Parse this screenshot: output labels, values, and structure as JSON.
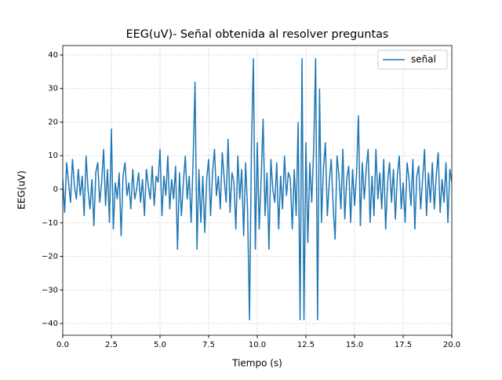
{
  "chart_data": {
    "type": "line",
    "title": "EEG(uV)- Señal obtenida al resolver preguntas",
    "x_label": "Tiempo (s)",
    "y_label": "EEG(uV)",
    "x": [
      0.0,
      0.1,
      0.2,
      0.3,
      0.4,
      0.5,
      0.6,
      0.7,
      0.8,
      0.9,
      1.0,
      1.1,
      1.2,
      1.3,
      1.4,
      1.5,
      1.6,
      1.7,
      1.8,
      1.9,
      2.0,
      2.1,
      2.2,
      2.3,
      2.4,
      2.5,
      2.6,
      2.7,
      2.8,
      2.9,
      3.0,
      3.1,
      3.2,
      3.3,
      3.4,
      3.5,
      3.6,
      3.7,
      3.8,
      3.9,
      4.0,
      4.1,
      4.2,
      4.3,
      4.4,
      4.5,
      4.6,
      4.7,
      4.8,
      4.9,
      5.0,
      5.1,
      5.2,
      5.3,
      5.4,
      5.5,
      5.6,
      5.7,
      5.8,
      5.9,
      6.0,
      6.1,
      6.2,
      6.3,
      6.4,
      6.5,
      6.6,
      6.7,
      6.8,
      6.9,
      7.0,
      7.1,
      7.2,
      7.3,
      7.4,
      7.5,
      7.6,
      7.7,
      7.8,
      7.9,
      8.0,
      8.1,
      8.2,
      8.3,
      8.4,
      8.5,
      8.6,
      8.7,
      8.8,
      8.9,
      9.0,
      9.1,
      9.2,
      9.3,
      9.4,
      9.5,
      9.6,
      9.7,
      9.8,
      9.9,
      10.0,
      10.1,
      10.2,
      10.3,
      10.4,
      10.5,
      10.6,
      10.7,
      10.8,
      10.9,
      11.0,
      11.1,
      11.2,
      11.3,
      11.4,
      11.5,
      11.6,
      11.7,
      11.8,
      11.9,
      12.0,
      12.1,
      12.2,
      12.3,
      12.4,
      12.5,
      12.6,
      12.7,
      12.8,
      12.9,
      13.0,
      13.1,
      13.2,
      13.3,
      13.4,
      13.5,
      13.6,
      13.7,
      13.8,
      13.9,
      14.0,
      14.1,
      14.2,
      14.3,
      14.4,
      14.5,
      14.6,
      14.7,
      14.8,
      14.9,
      15.0,
      15.1,
      15.2,
      15.3,
      15.4,
      15.5,
      15.6,
      15.7,
      15.8,
      15.9,
      16.0,
      16.1,
      16.2,
      16.3,
      16.4,
      16.5,
      16.6,
      16.7,
      16.8,
      16.9,
      17.0,
      17.1,
      17.2,
      17.3,
      17.4,
      17.5,
      17.6,
      17.7,
      17.8,
      17.9,
      18.0,
      18.1,
      18.2,
      18.3,
      18.4,
      18.5,
      18.6,
      18.7,
      18.8,
      18.9,
      19.0,
      19.1,
      19.2,
      19.3,
      19.4,
      19.5,
      19.6,
      19.7,
      19.8,
      19.9,
      20.0
    ],
    "series": [
      {
        "name": "señal",
        "color": "#1f77b4",
        "values": [
          3,
          -7,
          8,
          2,
          -4,
          9,
          1,
          -3,
          6,
          -2,
          4,
          -8,
          10,
          0,
          -6,
          3,
          -11,
          5,
          8,
          -4,
          2,
          12,
          -5,
          6,
          -10,
          18,
          -12,
          2,
          -3,
          5,
          -14,
          4,
          8,
          -2,
          2,
          -6,
          6,
          -3,
          0,
          5,
          -4,
          3,
          -8,
          6,
          1,
          -3,
          7,
          -5,
          4,
          2,
          12,
          -8,
          4,
          -2,
          10,
          -6,
          3,
          -3,
          7,
          -18,
          5,
          -8,
          2,
          10,
          -3,
          4,
          -10,
          8,
          32,
          -18,
          6,
          -10,
          4,
          -13,
          3,
          9,
          -8,
          5,
          12,
          -2,
          4,
          -6,
          11,
          3,
          -4,
          15,
          -7,
          5,
          2,
          -12,
          10,
          -3,
          6,
          -14,
          8,
          -6,
          -39,
          12,
          39,
          -18,
          14,
          -12,
          3,
          21,
          -8,
          5,
          -18,
          9,
          0,
          -4,
          8,
          -12,
          4,
          -6,
          10,
          -2,
          5,
          3,
          -12,
          6,
          -8,
          20,
          -39,
          39,
          -39,
          14,
          -16,
          8,
          -4,
          12,
          39,
          -39,
          30,
          -10,
          6,
          14,
          -8,
          2,
          9,
          -5,
          -15,
          10,
          4,
          -6,
          12,
          -9,
          3,
          7,
          -10,
          6,
          -5,
          4,
          22,
          -11,
          8,
          -3,
          6,
          12,
          -10,
          4,
          -8,
          12,
          -3,
          5,
          -6,
          9,
          -12,
          2,
          8,
          -4,
          6,
          -9,
          4,
          10,
          -6,
          2,
          -10,
          8,
          3,
          -5,
          9,
          -12,
          4,
          7,
          -6,
          3,
          12,
          -8,
          5,
          -4,
          8,
          -6,
          4,
          11,
          -7,
          3,
          -4,
          8,
          -10,
          6,
          2
        ]
      }
    ],
    "xlim": [
      0,
      20
    ],
    "ylim": [
      -43.5,
      42.8
    ],
    "xticks": [
      {
        "value": 0,
        "label": "0.0"
      },
      2.5,
      {
        "value": 5,
        "label": "5.0"
      },
      7.5,
      {
        "value": 10,
        "label": "10.0"
      },
      12.5,
      {
        "value": 15,
        "label": "15.0"
      },
      17.5,
      {
        "value": 20,
        "label": "20.0"
      }
    ],
    "yticks": [
      {
        "value": -40,
        "label": "−40"
      },
      {
        "value": -30,
        "label": "−30"
      },
      {
        "value": -20,
        "label": "−20"
      },
      {
        "value": -10,
        "label": "−10"
      },
      0,
      10,
      20,
      30,
      40
    ],
    "grid": true,
    "legend": "upper right"
  }
}
